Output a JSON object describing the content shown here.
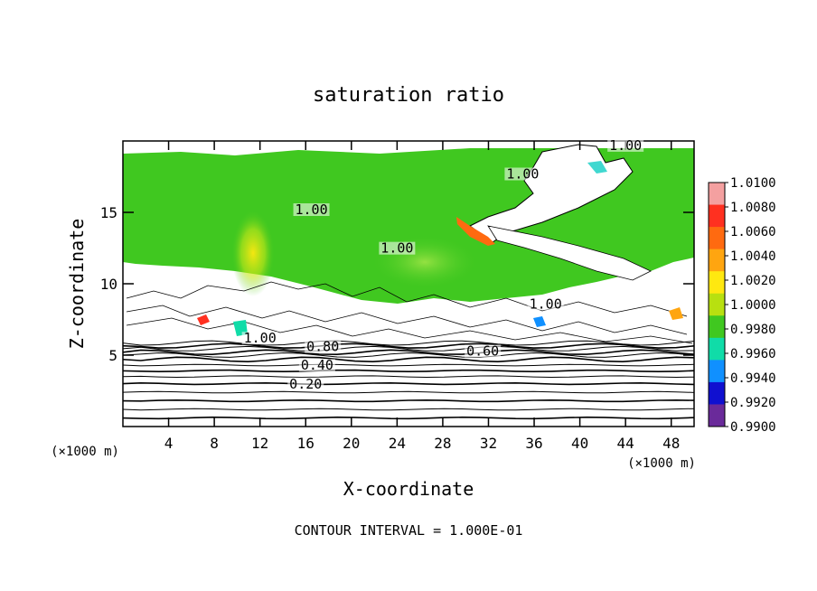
{
  "chart_data": {
    "type": "heatmap",
    "title": "saturation ratio",
    "xlabel": "X-coordinate",
    "ylabel": "Z-coordinate",
    "x_unit_label": "(×1000 m)",
    "y_unit_label": "(×1000 m)",
    "xlim": [
      0,
      50
    ],
    "ylim": [
      0,
      20
    ],
    "x_ticks": [
      4,
      8,
      12,
      16,
      20,
      24,
      28,
      32,
      36,
      40,
      44,
      48
    ],
    "y_ticks": [
      5,
      10,
      15
    ],
    "footer": "CONTOUR INTERVAL = 1.000E-01",
    "colorbar": {
      "labels": [
        "1.0100",
        "1.0080",
        "1.0060",
        "1.0040",
        "1.0020",
        "1.0000",
        "0.9980",
        "0.9960",
        "0.9940",
        "0.9920",
        "0.9900"
      ],
      "colors": [
        "#f4a0a0",
        "#ff3020",
        "#ff6a10",
        "#ffa510",
        "#ffe810",
        "#b8e010",
        "#40c820",
        "#10dca8",
        "#1090ff",
        "#1010d0",
        "#6a2a9a"
      ]
    },
    "contour_labels": [
      {
        "text": "1.00",
        "x": 16.5,
        "y": 15.0
      },
      {
        "text": "1.00",
        "x": 24.0,
        "y": 12.3
      },
      {
        "text": "1.00",
        "x": 35.0,
        "y": 17.5
      },
      {
        "text": "1.00",
        "x": 44.0,
        "y": 19.5
      },
      {
        "text": "1.00",
        "x": 37.0,
        "y": 8.4
      },
      {
        "text": "1.00",
        "x": 12.0,
        "y": 6.0
      },
      {
        "text": "0.80",
        "x": 17.5,
        "y": 5.4
      },
      {
        "text": "0.60",
        "x": 31.5,
        "y": 5.1
      },
      {
        "text": "0.40",
        "x": 17.0,
        "y": 4.1
      },
      {
        "text": "0.20",
        "x": 16.0,
        "y": 2.8
      }
    ],
    "level_lines_z": [
      0.6,
      1.2,
      1.8,
      2.4,
      3.0,
      3.5,
      3.9,
      4.3,
      4.7,
      5.0,
      5.2,
      5.45,
      5.65,
      5.85
    ]
  }
}
